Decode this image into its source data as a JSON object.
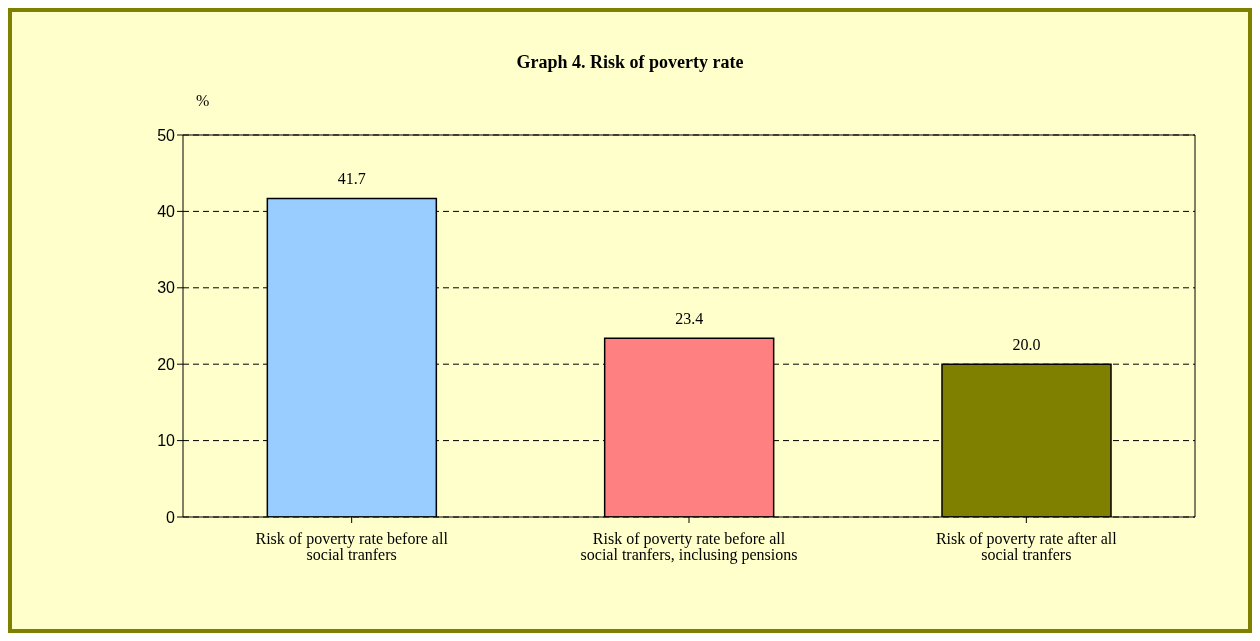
{
  "chart_data": {
    "type": "bar",
    "title": "Graph 4. Risk of poverty rate",
    "ylabel": "%",
    "categories": [
      "Risk of poverty rate before all social tranfers",
      "Risk of poverty rate before all social tranfers, inclusing pensions",
      "Risk of poverty rate after all social tranfers"
    ],
    "values": [
      41.7,
      23.4,
      20.0
    ],
    "colors": [
      "#99ccff",
      "#ff8080",
      "#808000"
    ],
    "value_labels": [
      "41.7",
      "23.4",
      "20.0"
    ],
    "ylim": [
      0,
      50
    ],
    "yticks": [
      0,
      10,
      20,
      30,
      40,
      50
    ],
    "grid": "y"
  }
}
